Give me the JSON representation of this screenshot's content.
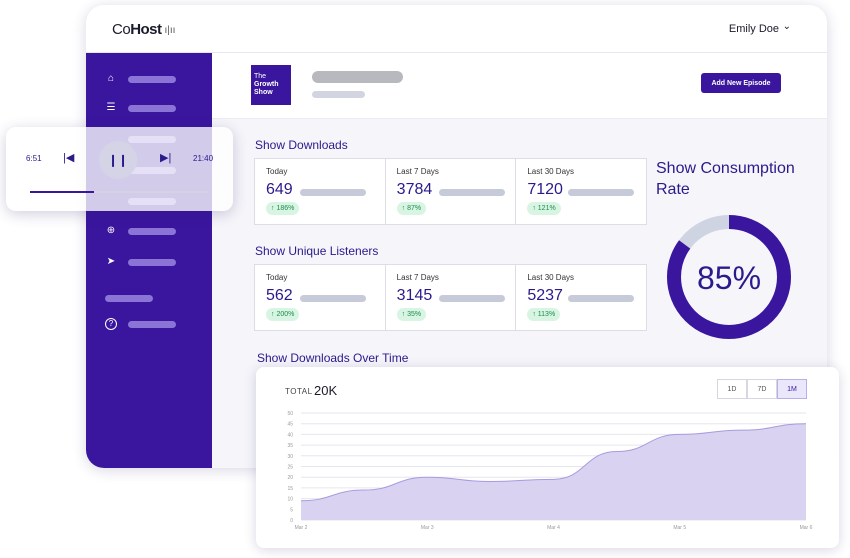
{
  "app": {
    "logo_light": "Co",
    "logo_bold": "Host",
    "logo_wave": "ı|ıı"
  },
  "user": {
    "name": "Emily Doe",
    "chevron": "⌄"
  },
  "sidebar": {
    "items": [
      {
        "icon": "home-icon",
        "glyph": "⌂"
      },
      {
        "icon": "list-icon",
        "glyph": "☰"
      },
      {
        "icon": "globe-icon",
        "glyph": "⊕"
      },
      {
        "icon": "send-icon",
        "glyph": "➤"
      },
      {
        "icon": "help-icon",
        "glyph": "?"
      }
    ]
  },
  "show": {
    "cover_the": "The",
    "cover_line1": "Growth",
    "cover_line2": "Show",
    "add_button": "Add New Episode"
  },
  "downloads": {
    "title": "Show Downloads",
    "stats": [
      {
        "label": "Today",
        "value": "649",
        "change": "↑ 186%"
      },
      {
        "label": "Last 7 Days",
        "value": "3784",
        "change": "↑ 87%"
      },
      {
        "label": "Last 30 Days",
        "value": "7120",
        "change": "↑ 121%"
      }
    ]
  },
  "listeners": {
    "title": "Show Unique Listeners",
    "stats": [
      {
        "label": "Today",
        "value": "562",
        "change": "↑ 200%"
      },
      {
        "label": "Last 7 Days",
        "value": "3145",
        "change": "↑ 35%"
      },
      {
        "label": "Last 30 Days",
        "value": "5237",
        "change": "↑ 113%"
      }
    ]
  },
  "consumption": {
    "title": "Show Consumption Rate",
    "value_text": "85%",
    "rate": 0.85,
    "colors": {
      "fill": "#3a169f",
      "track": "#cfd4e2"
    }
  },
  "over_time": {
    "title": "Show Downloads Over Time",
    "total_label": "TOTAL",
    "total_value": "20K",
    "ranges": [
      "1D",
      "7D",
      "1M"
    ],
    "active_range": "1M"
  },
  "player": {
    "elapsed": "6:51",
    "duration": "21:40",
    "progress": 0.36
  },
  "chart_data": {
    "type": "area",
    "title": "Show Downloads Over Time",
    "x": [
      "Mar 2",
      "Mar 3",
      "Mar 4",
      "Mar 5",
      "Mar 6"
    ],
    "series": [
      {
        "values": [
          {
            "x": 0.0,
            "y": 9
          },
          {
            "x": 0.5,
            "y": 14
          },
          {
            "x": 1.0,
            "y": 20
          },
          {
            "x": 1.5,
            "y": 18
          },
          {
            "x": 2.0,
            "y": 19
          },
          {
            "x": 2.5,
            "y": 32
          },
          {
            "x": 3.0,
            "y": 40
          },
          {
            "x": 3.5,
            "y": 42
          },
          {
            "x": 4.0,
            "y": 45
          }
        ]
      }
    ],
    "ylim": [
      0,
      50
    ],
    "yticks": [
      0,
      5,
      10,
      15,
      20,
      25,
      30,
      35,
      40,
      45,
      50
    ],
    "grid": true,
    "colors": {
      "fill": "#d9d3f1",
      "stroke": "#a99bdd",
      "grid": "#e6e6ee"
    }
  }
}
